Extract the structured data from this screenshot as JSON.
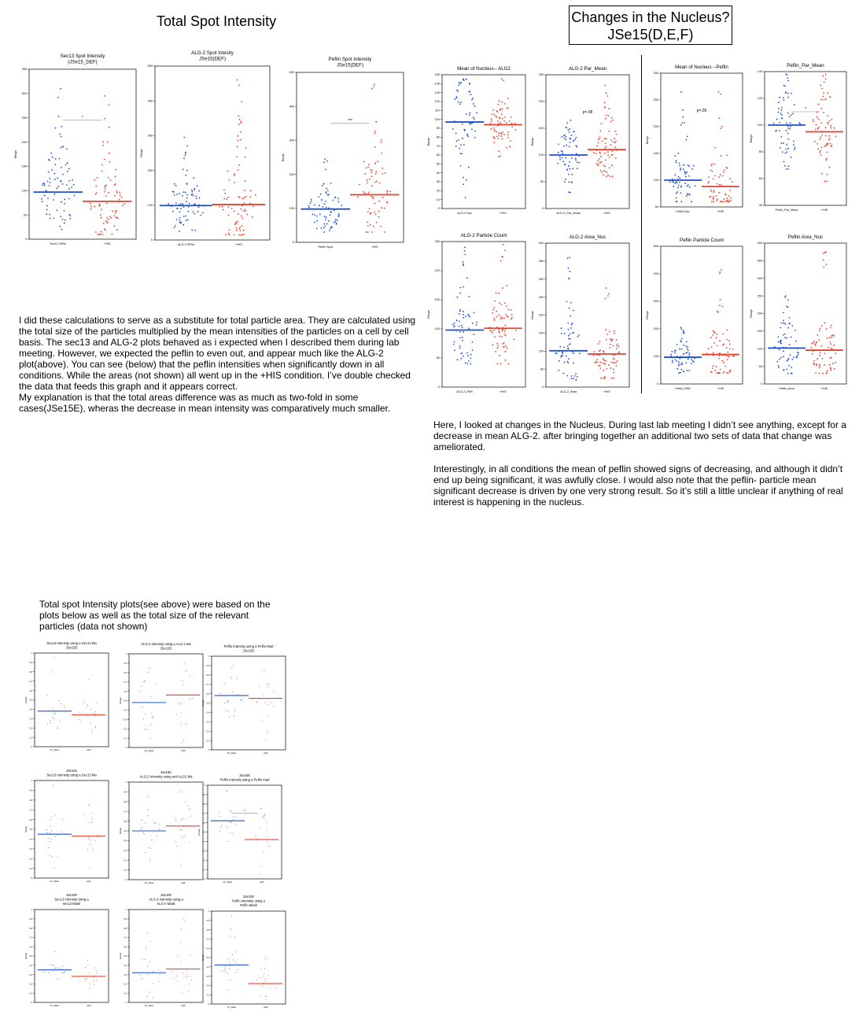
{
  "page": {
    "left_title": "Total Spot Intensity",
    "right_title_line1": "Changes in the Nucleus?",
    "right_title_line2": "JSe15(D,E,F)"
  },
  "text": {
    "left_para": [
      "I did these calculations to serve as a substitute for total particle area. They are calculated using the total size of the particles multiplied by the mean intensities of the particles on a cell by cell basis. The sec13 and ALG-2 plots behaved as i expected when I described them during lab meeting. However, we expected the peflin to even out, and appear much like the ALG-2 plot(above). You can see (below) that the peflin intensities when significantly down in all conditions. While the areas (not shown) all went up in the +HIS condition. I’ve double checked the data that feeds this graph and it appears correct.",
      "My explanation is that the total areas difference was as much as two-fold in some cases(JSe15E), wheras the decrease in mean intensity was comparatively much smaller."
    ],
    "right_para": [
      "Here, I looked at changes in the Nucleus. During last lab meeting I didn’t see anything, except for a decrease in mean ALG-2. after bringing together an additional two sets of data that change was ameliorated.",
      "Interestingly, in all conditions the mean of peflin showed signs of decreasing, and although it didn’t end up being significant, it was awfully close. I would also note that the peflin- particle mean significant decrease is driven by one very strong result. So it’s still a little unclear if anything of real interest is happening in the nucleus."
    ],
    "bottom_para": "Total spot Intensity plots(see above) were based on the plots below as well as the total size of the relevant particles (data not shown)"
  },
  "chart_data": [
    {
      "type": "scatter",
      "id": "sec13_spot",
      "title": [
        "Sec13 Spot Intensity",
        "(JSe15_DEF)"
      ],
      "ylabel": "Range",
      "categories": [
        "Sec13 SPint",
        "+HIS"
      ],
      "ylim": [
        0,
        350
      ],
      "yticks": [
        0,
        50,
        100,
        150,
        200,
        250,
        300,
        350
      ],
      "means": [
        97,
        78
      ],
      "n": [
        80,
        80
      ],
      "ranges": [
        [
          20,
          310
        ],
        [
          10,
          295
        ]
      ],
      "sig": "*"
    },
    {
      "type": "scatter",
      "id": "alg2_spot",
      "title": [
        "ALG-2 Spot Intesity",
        "JSe15(DEF)"
      ],
      "ylabel": "Range",
      "categories": [
        "ALG-2 SPint",
        "+HIS"
      ],
      "ylim": [
        0,
        500
      ],
      "yticks": [
        0,
        100,
        200,
        300,
        400,
        500
      ],
      "means": [
        99,
        102
      ],
      "n": [
        80,
        80
      ],
      "ranges": [
        [
          25,
          295
        ],
        [
          15,
          460
        ]
      ],
      "sig": ""
    },
    {
      "type": "scatter",
      "id": "peflin_spot",
      "title": [
        "Peflin Spot Intensity",
        "JSe15(DEF)"
      ],
      "ylabel": "Range",
      "categories": [
        "Peflin Spot",
        "+HIS"
      ],
      "ylim": [
        0,
        500
      ],
      "yticks": [
        0,
        100,
        200,
        300,
        400,
        500
      ],
      "means": [
        98,
        140
      ],
      "n": [
        70,
        75
      ],
      "ranges": [
        [
          30,
          245
        ],
        [
          30,
          465
        ]
      ],
      "sig": "***"
    },
    {
      "type": "scatter",
      "id": "nuc_alg2_mean",
      "title": [
        "Mean of Nucleus-- ALG2"
      ],
      "ylabel": "Range",
      "categories": [
        "ALG-2 Nuc",
        "+HIS"
      ],
      "ylim": [
        0,
        150
      ],
      "yticks": [
        0,
        10,
        20,
        30,
        40,
        50,
        60,
        70,
        80,
        90,
        100,
        110,
        120,
        130,
        140,
        150
      ],
      "means": [
        97,
        94
      ],
      "n": [
        65,
        70
      ],
      "ranges": [
        [
          12,
          145
        ],
        [
          58,
          150
        ]
      ],
      "sig": ""
    },
    {
      "type": "scatter",
      "id": "nuc_alg2_par_mean",
      "title": [
        "ALG-2 Par_Mean"
      ],
      "ylabel": "Range",
      "categories": [
        "ALG-2_Par_Mean",
        "+HIS"
      ],
      "ylim": [
        0,
        250
      ],
      "yticks": [
        0,
        50,
        100,
        150,
        200,
        250
      ],
      "means": [
        100,
        110
      ],
      "n": [
        65,
        75
      ],
      "ranges": [
        [
          30,
          165
        ],
        [
          60,
          230
        ]
      ],
      "sig": "p=.08"
    },
    {
      "type": "scatter",
      "id": "nuc_peflin_mean",
      "title": [
        "Mean of Nucleus --Peflin"
      ],
      "ylabel": "Range",
      "categories": [
        "Peflin Nuc",
        "+HIS"
      ],
      "ylim": [
        50,
        300
      ],
      "yticks": [
        50,
        100,
        150,
        200,
        250,
        300
      ],
      "means": [
        100,
        88
      ],
      "n": [
        65,
        65
      ],
      "ranges": [
        [
          60,
          265
        ],
        [
          60,
          265
        ]
      ],
      "sig": "p=.09"
    },
    {
      "type": "scatter",
      "id": "nuc_peflin_par_mean",
      "title": [
        "Peflin_Par_Mean"
      ],
      "ylabel": "Range",
      "categories": [
        "Peflin_Par_Mean",
        "+HIS"
      ],
      "ylim": [
        40,
        140
      ],
      "yticks": [
        40,
        60,
        80,
        100,
        120,
        140
      ],
      "means": [
        100,
        95
      ],
      "n": [
        65,
        70
      ],
      "ranges": [
        [
          67,
          138
        ],
        [
          58,
          138
        ]
      ],
      "sig": "*"
    },
    {
      "type": "scatter",
      "id": "nuc_alg2_count",
      "title": [
        "ALG-2 Particle Count"
      ],
      "ylabel": "Range",
      "categories": [
        "ALG-2_PAR",
        "+HIS"
      ],
      "ylim": [
        0,
        250
      ],
      "yticks": [
        0,
        50,
        100,
        150,
        200,
        250
      ],
      "means": [
        98,
        101
      ],
      "n": [
        65,
        75
      ],
      "ranges": [
        [
          40,
          240
        ],
        [
          40,
          245
        ]
      ],
      "sig": ""
    },
    {
      "type": "scatter",
      "id": "nuc_alg2_area",
      "title": [
        "ALG-2 Area_Nuc"
      ],
      "ylabel": "Range",
      "categories": [
        "ALG-2_Area",
        "+HIS"
      ],
      "ylim": [
        0,
        400
      ],
      "yticks": [
        0,
        50,
        100,
        150,
        200,
        250,
        300,
        350,
        400
      ],
      "means": [
        101,
        92
      ],
      "n": [
        65,
        75
      ],
      "ranges": [
        [
          20,
          360
        ],
        [
          25,
          275
        ]
      ],
      "sig": ""
    },
    {
      "type": "scatter",
      "id": "nuc_peflin_count",
      "title": [
        "Peflin Particle Count"
      ],
      "ylabel": "Range",
      "categories": [
        "Peflin_PAR",
        "+HIS"
      ],
      "ylim": [
        0,
        500
      ],
      "yticks": [
        0,
        100,
        200,
        300,
        400,
        500
      ],
      "means": [
        97,
        107
      ],
      "n": [
        65,
        70
      ],
      "ranges": [
        [
          40,
          205
        ],
        [
          40,
          415
        ]
      ],
      "sig": ""
    },
    {
      "type": "scatter",
      "id": "nuc_peflin_area",
      "title": [
        "Peflin Area_Nuc"
      ],
      "ylabel": "Range",
      "categories": [
        "Peflin_Area",
        "+HIS"
      ],
      "ylim": [
        0,
        400
      ],
      "yticks": [
        0,
        50,
        100,
        150,
        200,
        250,
        300,
        350,
        400
      ],
      "means": [
        102,
        96
      ],
      "n": [
        65,
        70
      ],
      "ranges": [
        [
          30,
          250
        ],
        [
          30,
          375
        ]
      ],
      "sig": ""
    },
    {
      "type": "scatter",
      "id": "sm1",
      "title": [
        "Sec13 Intensity using a Sec13 Ma",
        "JSe15D"
      ],
      "ylabel": "Range",
      "categories": [
        "CC_Mean",
        "+HIS"
      ],
      "ylim": [
        0,
        1
      ],
      "yticks": [
        0,
        0.1,
        0.2,
        0.3,
        0.4,
        0.5,
        0.6,
        0.7,
        0.8,
        0.9,
        1
      ],
      "means": [
        0.38,
        0.34
      ],
      "n": [
        20,
        20
      ],
      "ranges": [
        [
          0.2,
          0.95
        ],
        [
          0.15,
          0.72
        ]
      ],
      "sig": ""
    },
    {
      "type": "scatter",
      "id": "sm2",
      "title": [
        "ALG-2 Intensity using a ALG-2 Ma",
        "JSe15D"
      ],
      "ylabel": "Range",
      "categories": [
        "CC_Mean",
        "+HIS"
      ],
      "ylim": [
        0,
        1
      ],
      "yticks": [
        0,
        0.1,
        0.2,
        0.3,
        0.4,
        0.5,
        0.6,
        0.7,
        0.8,
        0.9,
        1
      ],
      "means": [
        0.48,
        0.56
      ],
      "n": [
        20,
        20
      ],
      "ranges": [
        [
          0.1,
          0.85
        ],
        [
          0.05,
          0.9
        ]
      ],
      "sig": ""
    },
    {
      "type": "scatter",
      "id": "sm3",
      "title": [
        "Peflin Intensity using a Peflin Mad",
        "JSe15D"
      ],
      "ylabel": "Range",
      "categories": [
        "CC_Mean",
        "+HIS"
      ],
      "ylim": [
        0,
        1
      ],
      "yticks": [
        0,
        0.1,
        0.2,
        0.3,
        0.4,
        0.5,
        0.6,
        0.7,
        0.8,
        0.9,
        1
      ],
      "means": [
        0.58,
        0.55
      ],
      "n": [
        20,
        20
      ],
      "ranges": [
        [
          0.35,
          0.9
        ],
        [
          0.1,
          0.85
        ]
      ],
      "sig": ""
    },
    {
      "type": "scatter",
      "id": "sm4",
      "title": [
        "JSe15e",
        "Sec13 Intensity using a Sec13 Ma"
      ],
      "ylabel": "Range",
      "categories": [
        "CC_Mean",
        "+HIS"
      ],
      "ylim": [
        0,
        1
      ],
      "yticks": [
        0,
        0.1,
        0.2,
        0.3,
        0.4,
        0.5,
        0.6,
        0.7,
        0.8,
        0.9,
        1
      ],
      "means": [
        0.45,
        0.43
      ],
      "n": [
        20,
        20
      ],
      "ranges": [
        [
          0.1,
          0.95
        ],
        [
          0.1,
          0.75
        ]
      ],
      "sig": ""
    },
    {
      "type": "scatter",
      "id": "sm5",
      "title": [
        "Jse15E",
        "ALG-2 Intensity using and ALG2 Ma"
      ],
      "ylabel": "Range",
      "categories": [
        "CC_Mean",
        "+HIS"
      ],
      "ylim": [
        0,
        1
      ],
      "yticks": [
        0,
        0.1,
        0.2,
        0.3,
        0.4,
        0.5,
        0.6,
        0.7,
        0.8,
        0.9,
        1
      ],
      "means": [
        0.5,
        0.55
      ],
      "n": [
        20,
        20
      ],
      "ranges": [
        [
          0.2,
          0.85
        ],
        [
          0.15,
          0.9
        ]
      ],
      "sig": ""
    },
    {
      "type": "scatter",
      "id": "sm6",
      "title": [
        "Jse15E",
        "Peflin Intensity using a Peflin mad"
      ],
      "ylabel": "Range",
      "categories": [
        "CC_Mean",
        "+HIS"
      ],
      "ylim": [
        0,
        1
      ],
      "yticks": [
        0,
        0.1,
        0.2,
        0.3,
        0.4,
        0.5,
        0.6,
        0.7,
        0.8,
        0.9,
        1
      ],
      "means": [
        0.62,
        0.42
      ],
      "n": [
        20,
        20
      ],
      "ranges": [
        [
          0.4,
          0.95
        ],
        [
          0.05,
          0.75
        ]
      ],
      "sig": "***"
    },
    {
      "type": "scatter",
      "id": "sm7",
      "title": [
        "JSe15F",
        "Sec13 Intensity using a",
        "sec13 Mask"
      ],
      "ylabel": "Range",
      "categories": [
        "CC_Mean",
        "+HIS"
      ],
      "ylim": [
        0,
        1
      ],
      "yticks": [
        0,
        0.1,
        0.2,
        0.3,
        0.4,
        0.5,
        0.6,
        0.7,
        0.8,
        0.9,
        1
      ],
      "means": [
        0.35,
        0.28
      ],
      "n": [
        20,
        20
      ],
      "ranges": [
        [
          0.25,
          0.55
        ],
        [
          0.15,
          0.45
        ]
      ],
      "sig": ""
    },
    {
      "type": "scatter",
      "id": "sm8",
      "title": [
        "JSe15F",
        "ALG-2 Intensity using a",
        "ALG-2 Mask"
      ],
      "ylabel": "Range",
      "categories": [
        "CC_Mean",
        "+HIS"
      ],
      "ylim": [
        0,
        1
      ],
      "yticks": [
        0,
        0.1,
        0.2,
        0.3,
        0.4,
        0.5,
        0.6,
        0.7,
        0.8,
        0.9,
        1
      ],
      "means": [
        0.32,
        0.36
      ],
      "n": [
        20,
        20
      ],
      "ranges": [
        [
          0.05,
          0.75
        ],
        [
          0.1,
          0.9
        ]
      ],
      "sig": ""
    },
    {
      "type": "scatter",
      "id": "sm9",
      "title": [
        "JSe15F",
        "Peflin Intensity using a",
        "Peflin Mask"
      ],
      "ylabel": "Range",
      "categories": [
        "CC_Mean",
        "+HIS"
      ],
      "ylim": [
        0,
        1
      ],
      "yticks": [
        0,
        0.1,
        0.2,
        0.3,
        0.4,
        0.5,
        0.6,
        0.7,
        0.8,
        0.9,
        1
      ],
      "means": [
        0.42,
        0.22
      ],
      "n": [
        20,
        20
      ],
      "ranges": [
        [
          0.15,
          0.95
        ],
        [
          0.05,
          0.5
        ]
      ],
      "sig": ""
    }
  ]
}
